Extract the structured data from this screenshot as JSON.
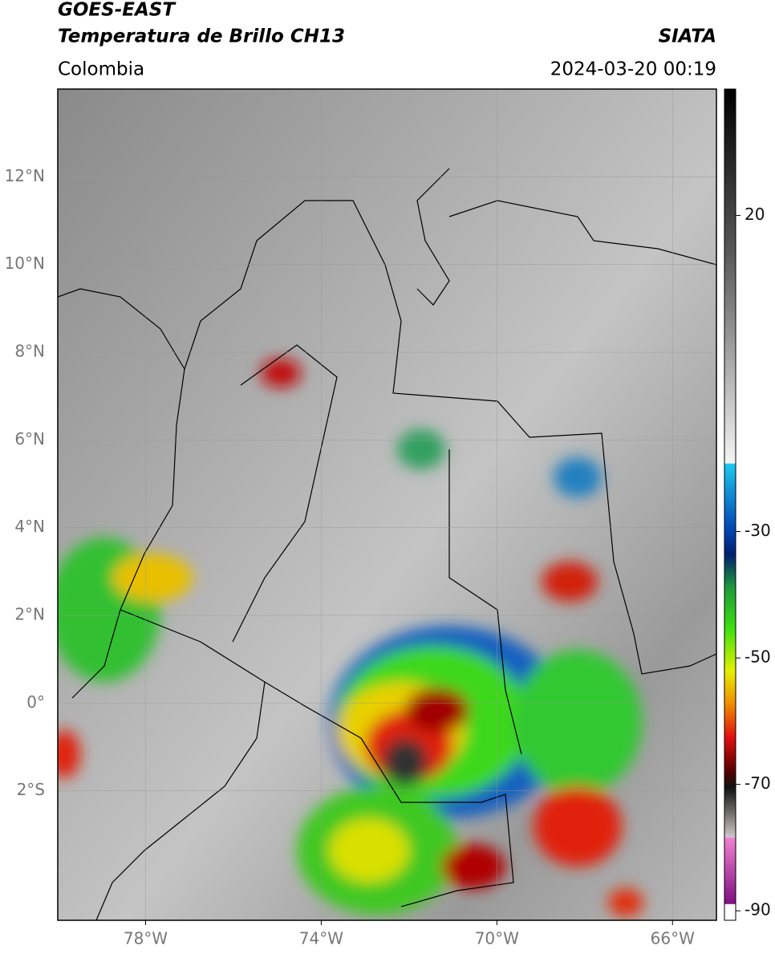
{
  "header": {
    "title": "GOES-EAST",
    "subtitle": "Temperatura de Brillo CH13",
    "source": "SIATA",
    "region": "Colombia",
    "timestamp": "2024-03-20 00:19"
  },
  "map": {
    "lon_range": [
      -80,
      -65
    ],
    "lat_range": [
      14,
      -4.95
    ],
    "lat_ticks": [
      {
        "value": 12,
        "label": "12°N"
      },
      {
        "value": 10,
        "label": "10°N"
      },
      {
        "value": 8,
        "label": "8°N"
      },
      {
        "value": 6,
        "label": "6°N"
      },
      {
        "value": 4,
        "label": "4°N"
      },
      {
        "value": 2,
        "label": "2°N"
      },
      {
        "value": 0,
        "label": "0°"
      },
      {
        "value": -2,
        "label": "2°S"
      }
    ],
    "lon_ticks": [
      {
        "value": -78,
        "label": "78°W"
      },
      {
        "value": -74,
        "label": "74°W"
      },
      {
        "value": -70,
        "label": "70°W"
      },
      {
        "value": -66,
        "label": "66°W"
      }
    ]
  },
  "colorbar": {
    "range": [
      40,
      -91.5
    ],
    "ticks": [
      20,
      -30,
      -50,
      -70,
      -90
    ]
  }
}
